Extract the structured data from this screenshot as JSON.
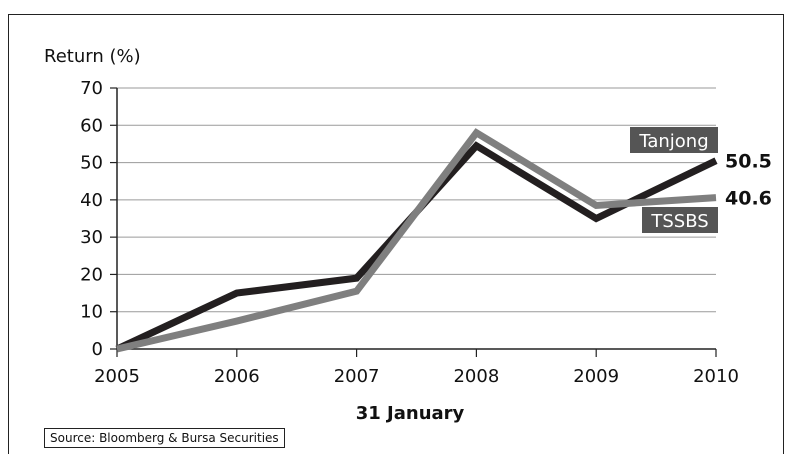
{
  "chart_data": {
    "type": "line",
    "ylabel": "Return (%)",
    "xlabel": "31 January",
    "x": [
      "2005",
      "2006",
      "2007",
      "2008",
      "2009",
      "2010"
    ],
    "ylim": [
      0,
      70
    ],
    "yticks": [
      0,
      10,
      20,
      30,
      40,
      50,
      60,
      70
    ],
    "grid": true,
    "series": [
      {
        "name": "Tanjong",
        "values": [
          0,
          15,
          19,
          54.5,
          35,
          50.5
        ],
        "color": "#231f20",
        "end_label": "50.5"
      },
      {
        "name": "TSSBS",
        "values": [
          0,
          7.5,
          15.5,
          58,
          38.5,
          40.6
        ],
        "color": "#7f7f7f",
        "end_label": "40.6"
      }
    ],
    "source": "Source: Bloomberg & Bursa Securities"
  },
  "colors": {
    "grid": "#9a9a9a",
    "label_box": "#555555",
    "axis": "#222222"
  }
}
